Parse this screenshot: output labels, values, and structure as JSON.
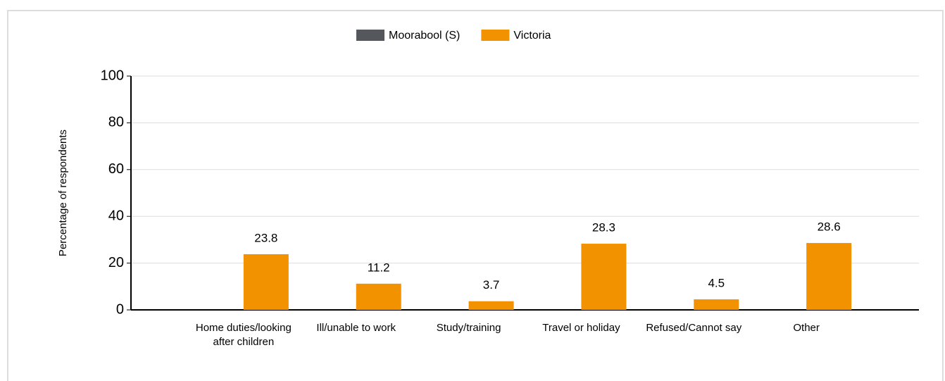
{
  "chart_data": {
    "type": "bar",
    "categories": [
      "Home duties/looking after children",
      "Ill/unable to work",
      "Study/training",
      "Travel or holiday",
      "Refused/Cannot say",
      "Other"
    ],
    "series": [
      {
        "name": "Moorabool (S)",
        "color": "#54585d",
        "values": [
          null,
          null,
          null,
          null,
          null,
          null
        ]
      },
      {
        "name": "Victoria",
        "color": "#f39200",
        "values": [
          23.8,
          11.2,
          3.7,
          28.3,
          4.5,
          28.6
        ]
      }
    ],
    "ylabel": "Percentage of respondents",
    "ylim": [
      0,
      100
    ],
    "yticks": [
      0,
      20,
      40,
      60,
      80,
      100
    ],
    "grid": true,
    "legend": "top"
  }
}
